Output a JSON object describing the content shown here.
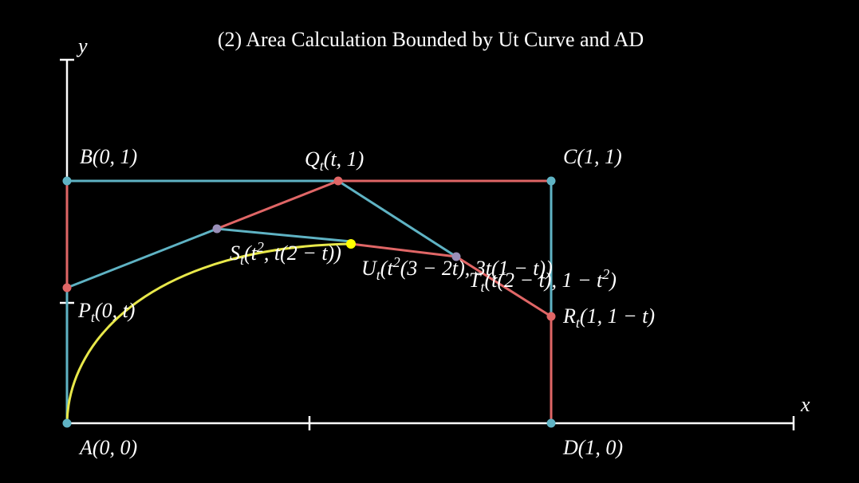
{
  "title": "(2) Area Calculation Bounded by Ut Curve and AD",
  "axes": {
    "x": "x",
    "y": "y"
  },
  "labels": [
    {
      "parts": [
        {
          "text": "B(0, 1)"
        }
      ]
    },
    {
      "parts": [
        {
          "text": "C(1, 1)"
        }
      ]
    },
    {
      "parts": [
        {
          "text": "A(0, 0)"
        }
      ]
    },
    {
      "parts": [
        {
          "text": "D(1, 0)"
        }
      ]
    },
    {
      "parts": [
        {
          "text": "Q"
        },
        {
          "sub": "t"
        },
        {
          "text": "(t, 1)"
        }
      ]
    },
    {
      "parts": [
        {
          "text": "P"
        },
        {
          "sub": "t"
        },
        {
          "text": "(0, t)"
        }
      ]
    },
    {
      "parts": [
        {
          "text": "R"
        },
        {
          "sub": "t"
        },
        {
          "text": "(1, 1 − t)"
        }
      ]
    },
    {
      "parts": [
        {
          "text": "S"
        },
        {
          "sub": "t"
        },
        {
          "text": "(t"
        },
        {
          "sup": "2"
        },
        {
          "text": ", t(2 − t))"
        }
      ]
    },
    {
      "parts": [
        {
          "text": "U"
        },
        {
          "sub": "t"
        },
        {
          "text": "(t"
        },
        {
          "sup": "2"
        },
        {
          "text": "(3 − 2t), 3t(1 − t))"
        }
      ]
    },
    {
      "parts": [
        {
          "text": "T"
        },
        {
          "sub": "t"
        },
        {
          "text": "(t(2 − t), 1 − t"
        },
        {
          "sup": "2"
        },
        {
          "text": ")"
        }
      ]
    }
  ]
}
